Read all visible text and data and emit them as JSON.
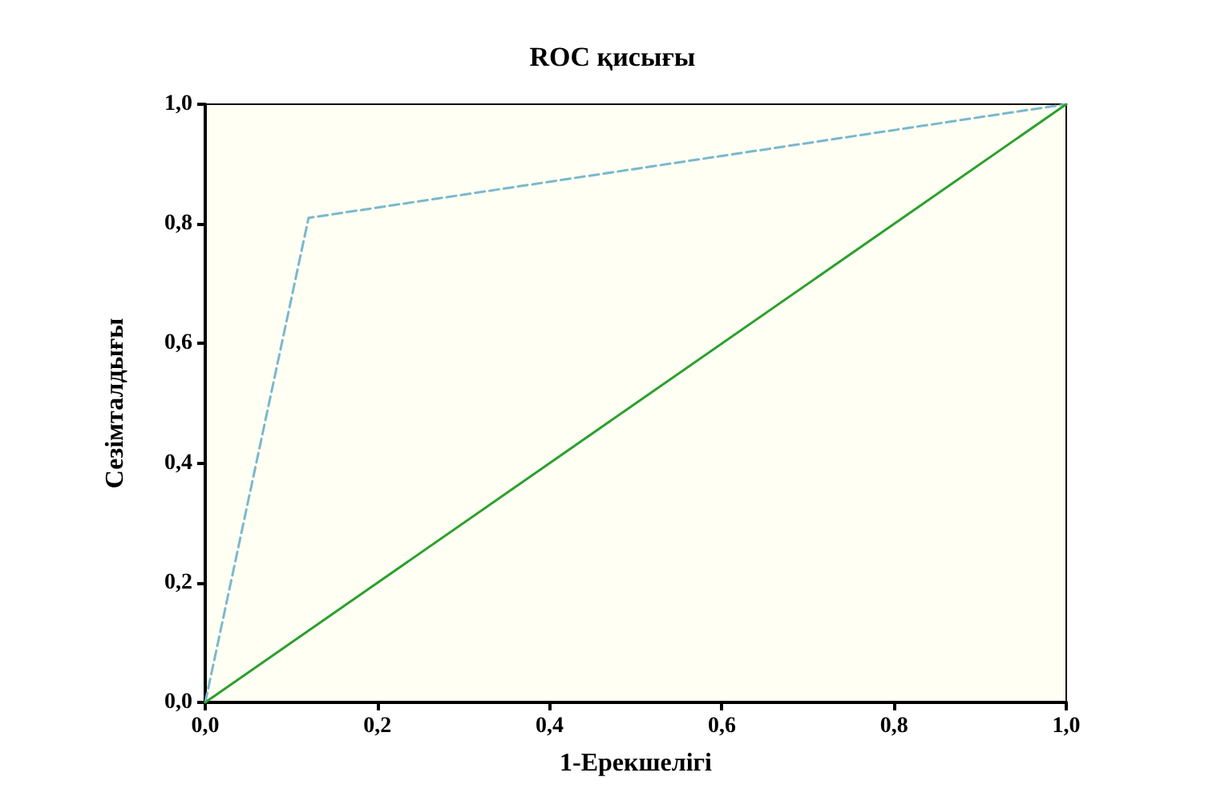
{
  "chart_data": {
    "type": "line",
    "title": "ROC қисығы",
    "xlabel": "1-Ерекшелігі",
    "ylabel": "Сезімталдығы",
    "series": [
      {
        "color": "#7ab8cc",
        "x": [
          0,
          0.12,
          1
        ],
        "values": [
          0,
          0.81,
          1
        ],
        "line_style": "dashed"
      },
      {
        "color": "#2ca02c",
        "x": [
          0,
          1
        ],
        "values": [
          0,
          1
        ],
        "line_style": "solid"
      }
    ],
    "xlim": [
      0,
      1
    ],
    "ylim": [
      0,
      1
    ],
    "xticks": [
      {
        "value": 0,
        "label": "0,0"
      },
      {
        "value": 0.2,
        "label": "0,2"
      },
      {
        "value": 0.4,
        "label": "0,4"
      },
      {
        "value": 0.6,
        "label": "0,6"
      },
      {
        "value": 0.8,
        "label": "0,8"
      },
      {
        "value": 1,
        "label": "1,0"
      }
    ],
    "yticks": [
      {
        "value": 0,
        "label": "0,0"
      },
      {
        "value": 0.2,
        "label": "0,2"
      },
      {
        "value": 0.4,
        "label": "0,4"
      },
      {
        "value": 0.6,
        "label": "0,6"
      },
      {
        "value": 0.8,
        "label": "0,8"
      },
      {
        "value": 1,
        "label": "1,0"
      }
    ],
    "grid": false,
    "marker": "none"
  }
}
